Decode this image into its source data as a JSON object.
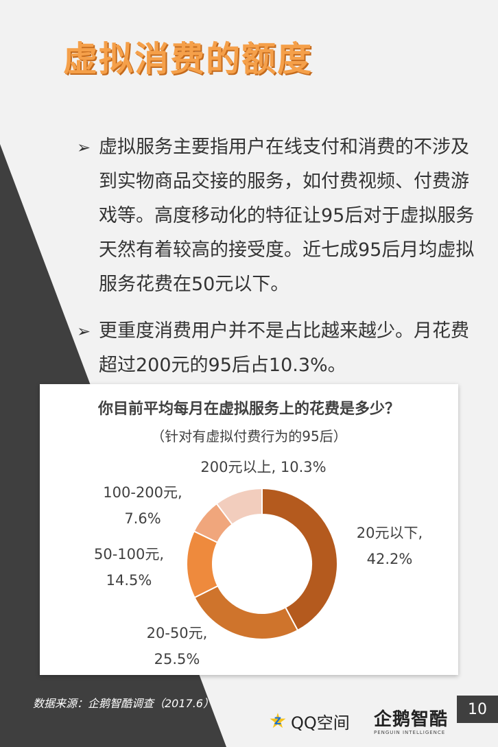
{
  "title": "虚拟消费的额度",
  "bullets": [
    "虚拟服务主要指用户在线支付和消费的不涉及到实物商品交接的服务，如付费视频、付费游戏等。高度移动化的特征让95后对于虚拟服务天然有着较高的接受度。近七成95后月均虚拟服务花费在50元以下。",
    "更重度消费用户并不是占比越来越少。月花费超过200元的95后占10.3%。"
  ],
  "bullet_marker": "➢",
  "chart_data": {
    "type": "pie",
    "style": "donut",
    "title": "你目前平均每月在虚拟服务上的花费是多少？",
    "subtitle": "（针对有虚拟付费行为的95后）",
    "slices": [
      {
        "category": "20元以下",
        "value": 42.2,
        "label_line1": "20元以下,",
        "label_line2": "42.2%",
        "color": "#b45a1e"
      },
      {
        "category": "20-50元",
        "value": 25.5,
        "label_line1": "20-50元,",
        "label_line2": "25.5%",
        "color": "#cf742c"
      },
      {
        "category": "50-100元",
        "value": 14.5,
        "label_line1": "50-100元,",
        "label_line2": "14.5%",
        "color": "#ee8a3d"
      },
      {
        "category": "100-200元",
        "value": 7.6,
        "label_line1": "100-200元,",
        "label_line2": "7.6%",
        "color": "#f0a67c"
      },
      {
        "category": "200元以上",
        "value": 10.3,
        "label_line1": "200元以上, 10.3%",
        "label_line2": "",
        "color": "#f2cdbd"
      }
    ]
  },
  "source": "数据来源：企鹅智酷调查（2017.6）",
  "footer": {
    "qq_star": "★",
    "qq_z": "Z",
    "qq_text": "QQ空间",
    "penguin_text": "企鹅智酷",
    "penguin_sub": "PENGUIN INTELLIGENCE",
    "page_number": "10"
  },
  "colors": {
    "title": "#f5a04a",
    "dark_wedge": "#3f3f3f",
    "background": "#f2f2f2"
  }
}
